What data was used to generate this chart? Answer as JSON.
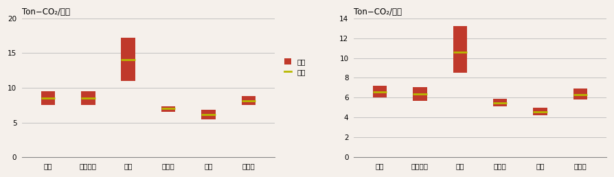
{
  "chart1": {
    "title": "Ton−CO₂/만원",
    "categories": [
      "가정",
      "가정상업",
      "상업",
      "농어업",
      "산업",
      "융복합"
    ],
    "bar_low": [
      7.5,
      7.5,
      11.0,
      6.5,
      5.5,
      7.5
    ],
    "bar_high": [
      9.5,
      9.5,
      17.2,
      7.3,
      6.8,
      8.8
    ],
    "avg": [
      8.5,
      8.5,
      14.0,
      7.0,
      6.1,
      8.1
    ],
    "ylim": [
      0,
      20
    ],
    "yticks": [
      0,
      5,
      10,
      15,
      20
    ]
  },
  "chart2": {
    "title": "Ton−CO₂/만원",
    "categories": [
      "가정",
      "가정상업",
      "상업",
      "농어업",
      "산업",
      "융복합"
    ],
    "bar_low": [
      6.0,
      5.7,
      8.5,
      5.1,
      4.2,
      5.8
    ],
    "bar_high": [
      7.2,
      7.1,
      13.2,
      5.9,
      5.0,
      6.9
    ],
    "avg": [
      6.6,
      6.4,
      10.6,
      5.5,
      4.6,
      6.3
    ],
    "ylim": [
      0,
      14
    ],
    "yticks": [
      0,
      2,
      4,
      6,
      8,
      10,
      12,
      14
    ]
  },
  "bar_color": "#c0392b",
  "avg_color": "#b8b800",
  "legend_range_label": "범위",
  "legend_avg_label": "평균",
  "bar_width": 0.35,
  "bg_color": "#f5f0eb",
  "grid_color": "#bbbbbb",
  "title_fontsize": 8.5,
  "tick_fontsize": 7.5
}
